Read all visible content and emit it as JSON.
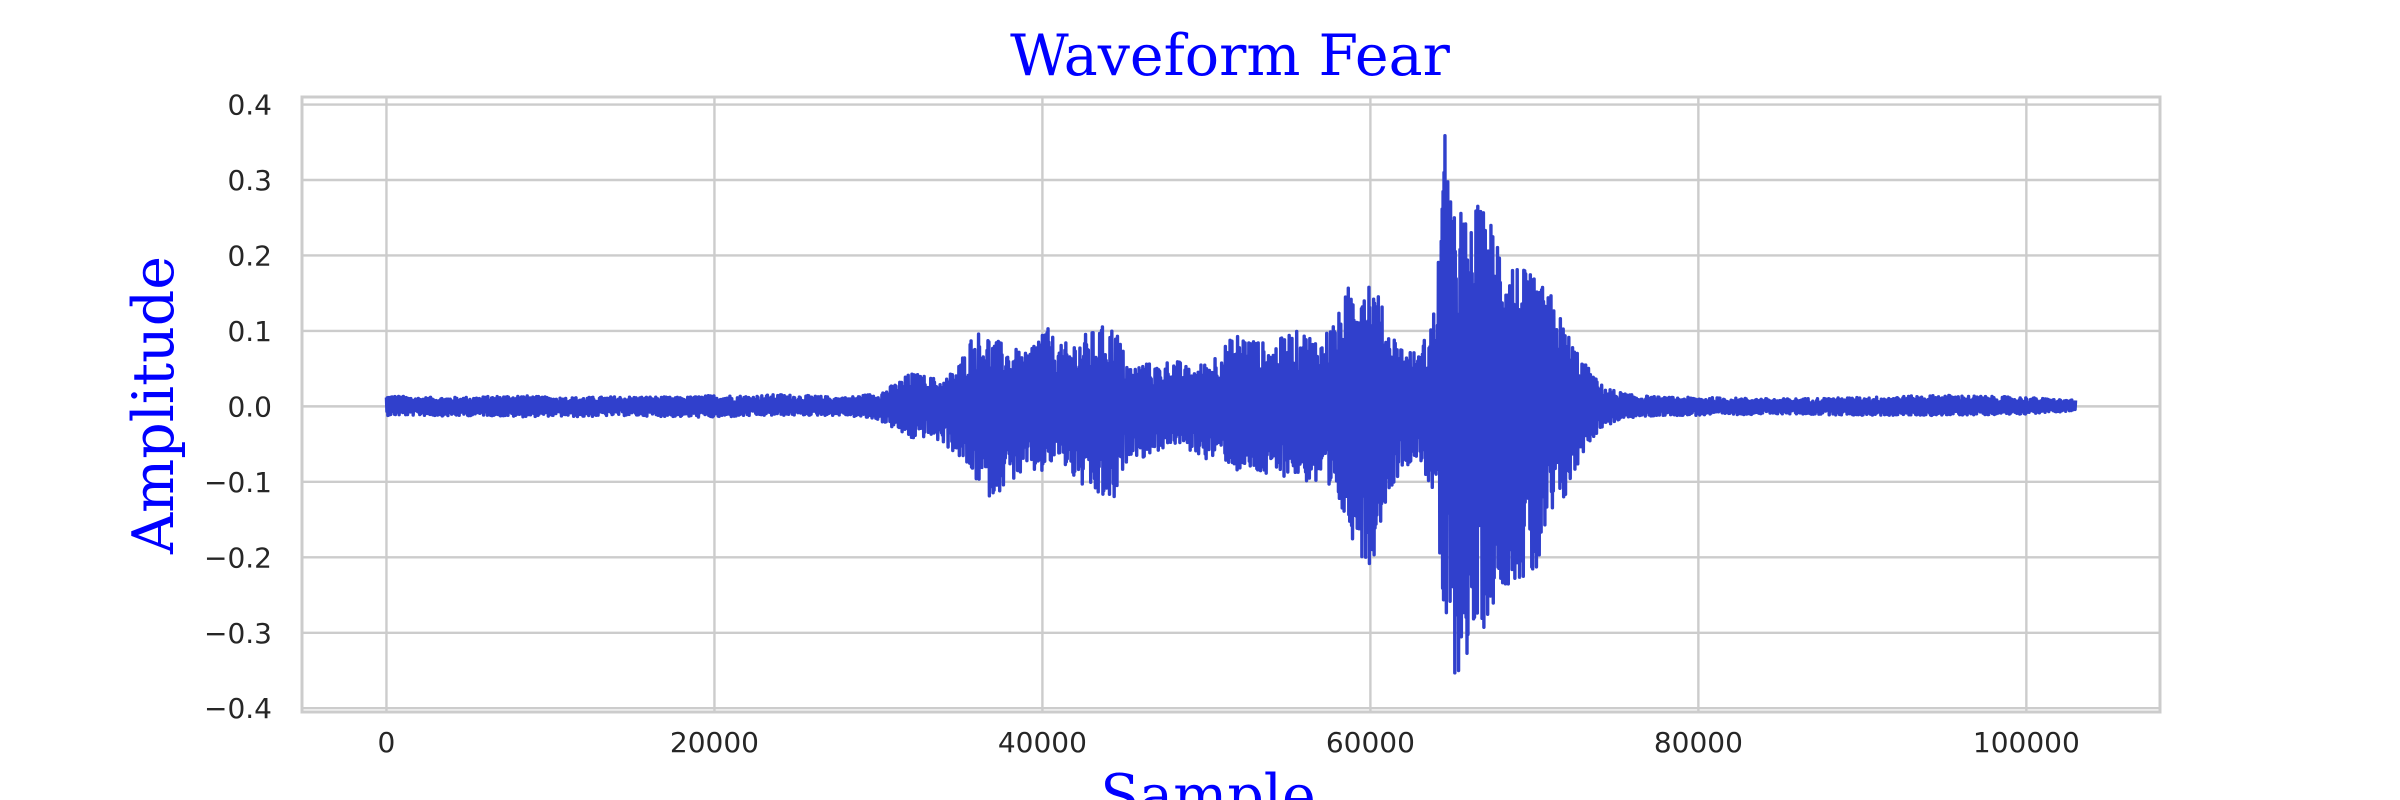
{
  "chart_data": {
    "type": "line",
    "title": "Waveform Fear",
    "xlabel": "Sample",
    "ylabel": "Amplitude",
    "xlim": [
      -5150,
      108150
    ],
    "ylim": [
      -0.405,
      0.41
    ],
    "x_ticks": [
      0,
      20000,
      40000,
      60000,
      80000,
      100000
    ],
    "x_tick_labels": [
      "0",
      "20000",
      "40000",
      "60000",
      "80000",
      "100000"
    ],
    "y_ticks": [
      0.4,
      0.3,
      0.2,
      0.1,
      0.0,
      -0.1,
      -0.2,
      -0.3,
      -0.4
    ],
    "y_tick_labels": [
      "0.4",
      "0.3",
      "0.2",
      "0.1",
      "0.0",
      "−0.1",
      "−0.2",
      "−0.3",
      "−0.4"
    ],
    "grid": true,
    "line_color": "#3040CC",
    "series": [
      {
        "x": [
          0,
          2000,
          4000,
          6000,
          8000,
          10000,
          12000,
          14000,
          16000,
          18000,
          20000,
          22000,
          24000,
          26000,
          28000,
          30000,
          31000,
          32000,
          33000,
          34000,
          35000,
          35500,
          36000,
          36500,
          37000,
          38000,
          39000,
          40000,
          40500,
          41000,
          42000,
          43000,
          44000,
          44500,
          45000,
          45500,
          46000,
          47000,
          48000,
          49000,
          50000,
          51000,
          52000,
          53000,
          54000,
          55000,
          56000,
          57000,
          57500,
          58000,
          58500,
          59000,
          59500,
          60000,
          60500,
          61000,
          62000,
          63000,
          64000,
          64500,
          64800,
          65000,
          65500,
          66000,
          66500,
          67000,
          68000,
          69000,
          70000,
          71000,
          72000,
          73000,
          74000,
          75000,
          76000,
          78000,
          80000,
          85000,
          90000,
          95000,
          100000,
          103000
        ],
        "y_max": [
          0.015,
          0.012,
          0.012,
          0.013,
          0.015,
          0.012,
          0.012,
          0.013,
          0.013,
          0.012,
          0.015,
          0.014,
          0.016,
          0.014,
          0.012,
          0.018,
          0.03,
          0.045,
          0.04,
          0.035,
          0.06,
          0.09,
          0.1,
          0.1,
          0.09,
          0.08,
          0.07,
          0.11,
          0.1,
          0.08,
          0.09,
          0.1,
          0.11,
          0.105,
          0.07,
          0.05,
          0.06,
          0.055,
          0.065,
          0.05,
          0.06,
          0.08,
          0.1,
          0.09,
          0.08,
          0.1,
          0.1,
          0.09,
          0.11,
          0.12,
          0.15,
          0.18,
          0.19,
          0.18,
          0.15,
          0.11,
          0.08,
          0.07,
          0.14,
          0.36,
          0.37,
          0.25,
          0.28,
          0.23,
          0.27,
          0.26,
          0.23,
          0.19,
          0.17,
          0.15,
          0.1,
          0.06,
          0.03,
          0.02,
          0.015,
          0.012,
          0.012,
          0.01,
          0.012,
          0.015,
          0.012,
          0.008
        ],
        "y_min": [
          -0.012,
          -0.012,
          -0.013,
          -0.012,
          -0.014,
          -0.013,
          -0.014,
          -0.012,
          -0.013,
          -0.014,
          -0.015,
          -0.013,
          -0.012,
          -0.012,
          -0.012,
          -0.018,
          -0.03,
          -0.045,
          -0.04,
          -0.05,
          -0.07,
          -0.09,
          -0.1,
          -0.12,
          -0.12,
          -0.1,
          -0.09,
          -0.09,
          -0.08,
          -0.07,
          -0.1,
          -0.12,
          -0.13,
          -0.13,
          -0.08,
          -0.06,
          -0.07,
          -0.06,
          -0.05,
          -0.06,
          -0.07,
          -0.07,
          -0.09,
          -0.09,
          -0.1,
          -0.09,
          -0.1,
          -0.11,
          -0.14,
          -0.13,
          -0.16,
          -0.18,
          -0.2,
          -0.22,
          -0.17,
          -0.12,
          -0.08,
          -0.07,
          -0.13,
          -0.32,
          -0.31,
          -0.37,
          -0.35,
          -0.33,
          -0.32,
          -0.29,
          -0.24,
          -0.23,
          -0.24,
          -0.16,
          -0.12,
          -0.06,
          -0.03,
          -0.02,
          -0.015,
          -0.012,
          -0.012,
          -0.01,
          -0.012,
          -0.012,
          -0.01,
          -0.006
        ]
      }
    ]
  }
}
